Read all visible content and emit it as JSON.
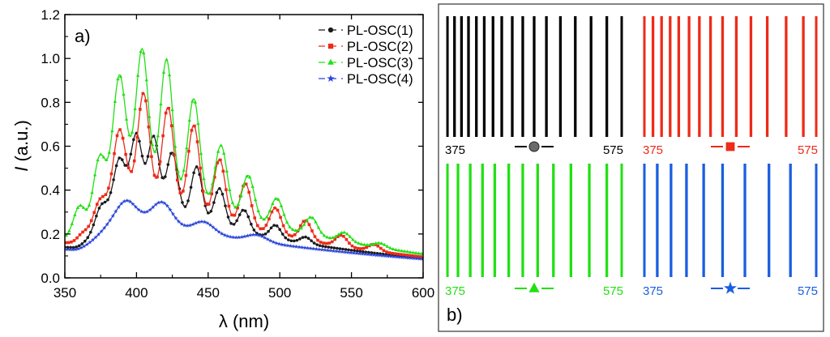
{
  "chart_data": [
    {
      "type": "line",
      "panel_label": "a)",
      "xlabel": "λ (nm)",
      "ylabel_italic": "I",
      "ylabel_rest": " (a.u.)",
      "xlim": [
        350,
        600
      ],
      "ylim": [
        0.0,
        1.2
      ],
      "xticks": [
        350,
        400,
        450,
        500,
        550,
        600
      ],
      "yticks": [
        0.0,
        0.2,
        0.4,
        0.6,
        0.8,
        1.0,
        1.2
      ],
      "legend_position": "top-right",
      "baseline_end": 0.06,
      "series": [
        {
          "name": "PL-OSC(1)",
          "color": "#1a1a1a",
          "marker": "circle",
          "baseline_start": 0.14,
          "floor_x": 395,
          "floor": 0.34,
          "decay": 95,
          "peaks": [
            [
              375,
              0.07
            ],
            [
              388,
              0.18
            ],
            [
              400,
              0.29
            ],
            [
              412,
              0.31
            ],
            [
              425,
              0.27
            ],
            [
              442,
              0.24
            ],
            [
              458,
              0.17
            ],
            [
              475,
              0.1
            ],
            [
              497,
              0.06
            ],
            [
              518,
              0.03
            ]
          ],
          "width": 3.8
        },
        {
          "name": "PL-OSC(2)",
          "color": "#ee2a18",
          "marker": "square",
          "baseline_start": 0.16,
          "floor_x": 395,
          "floor": 0.36,
          "decay": 100,
          "peaks": [
            [
              362,
              0.03
            ],
            [
              374,
              0.08
            ],
            [
              388,
              0.28
            ],
            [
              405,
              0.46
            ],
            [
              422,
              0.44
            ],
            [
              440,
              0.4
            ],
            [
              458,
              0.28
            ],
            [
              476,
              0.2
            ],
            [
              497,
              0.12
            ],
            [
              518,
              0.09
            ],
            [
              543,
              0.05
            ],
            [
              566,
              0.03
            ]
          ],
          "width": 4.0
        },
        {
          "name": "PL-OSC(3)",
          "color": "#22e014",
          "marker": "triangle",
          "baseline_start": 0.18,
          "floor_x": 395,
          "floor": 0.42,
          "decay": 110,
          "peaks": [
            [
              360,
              0.14
            ],
            [
              374,
              0.24
            ],
            [
              388,
              0.47
            ],
            [
              404,
              0.6
            ],
            [
              421,
              0.6
            ],
            [
              440,
              0.47
            ],
            [
              459,
              0.3
            ],
            [
              478,
              0.2
            ],
            [
              498,
              0.13
            ],
            [
              522,
              0.08
            ],
            [
              545,
              0.04
            ],
            [
              570,
              0.02
            ]
          ],
          "width": 4.2
        },
        {
          "name": "PL-OSC(4)",
          "color": "#2a45d8",
          "marker": "star",
          "baseline_start": 0.13,
          "floor_x": 395,
          "floor": 0.22,
          "decay": 110,
          "peaks": [
            [
              393,
              0.07
            ],
            [
              418,
              0.1
            ],
            [
              447,
              0.05
            ],
            [
              484,
              0.03
            ]
          ],
          "width": 7.0
        }
      ]
    },
    {
      "type": "line-pattern",
      "panel_label": "b)",
      "x_range": [
        375,
        575
      ],
      "panels": [
        {
          "name": "black",
          "color": "#000000",
          "marker": "circle",
          "start_label": "375",
          "end_label": "575",
          "label_color": "#000000",
          "lines": [
            376,
            384,
            392,
            400,
            409,
            418,
            428,
            438,
            450,
            462,
            475,
            489,
            505,
            522,
            540,
            558,
            575
          ]
        },
        {
          "name": "red",
          "color": "#ee2a18",
          "marker": "square",
          "start_label": "375",
          "end_label": "575",
          "label_color": "#ee2a18",
          "lines": [
            375,
            385,
            395,
            405,
            415,
            427,
            439,
            452,
            466,
            482,
            499,
            518,
            540,
            560,
            575
          ]
        },
        {
          "name": "green",
          "color": "#22e014",
          "marker": "triangle",
          "start_label": "375",
          "end_label": "575",
          "label_color": "#22e014",
          "lines": [
            376,
            388,
            402,
            416,
            430,
            446,
            462,
            479,
            497,
            517,
            538,
            558,
            575
          ]
        },
        {
          "name": "blue",
          "color": "#1a5ee0",
          "marker": "star",
          "start_label": "375",
          "end_label": "575",
          "label_color": "#1a5ee0",
          "lines": [
            375,
            390,
            406,
            424,
            444,
            466,
            492,
            520,
            545,
            575
          ]
        }
      ]
    }
  ]
}
